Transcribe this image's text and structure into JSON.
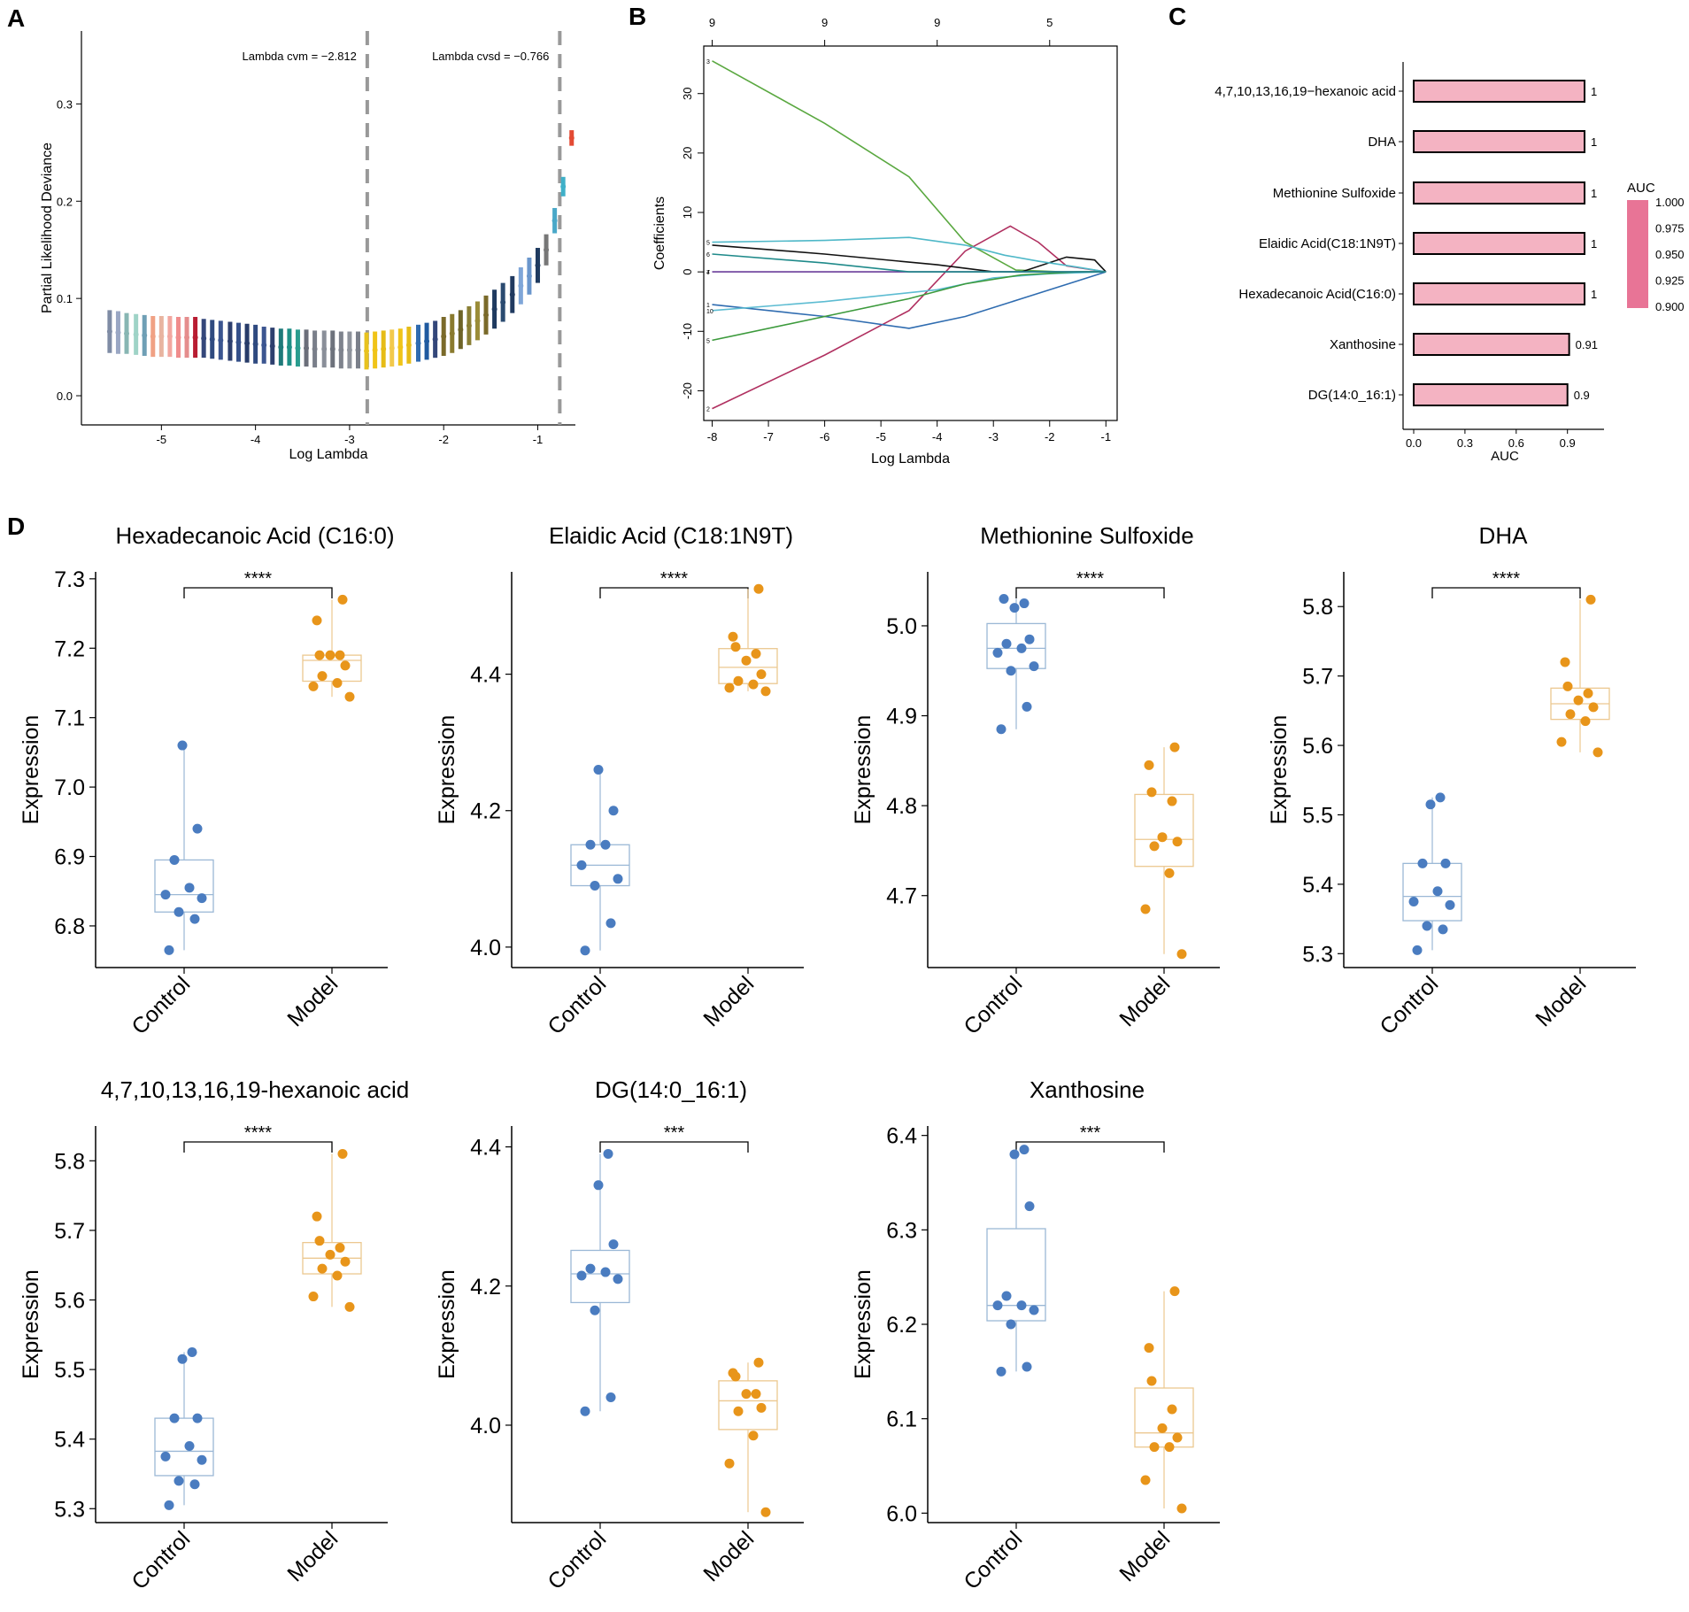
{
  "panel_labels": [
    "A",
    "B",
    "C",
    "D"
  ],
  "chart_data": [
    {
      "id": "A",
      "type": "errorbar",
      "title": "",
      "xlabel": "Log Lambda",
      "ylabel": "Partial Likelihood Deviance",
      "xlim": [
        -5.85,
        -0.6
      ],
      "ylim": [
        -0.03,
        0.375
      ],
      "xticks": [
        -5,
        -4,
        -3,
        -2,
        -1
      ],
      "yticks": [
        0.0,
        0.1,
        0.2,
        0.3
      ],
      "vlines": [
        {
          "x": -2.812,
          "label": "Lambda cvm = −2.812"
        },
        {
          "x": -0.766,
          "label": "Lambda cvsd = −0.766"
        }
      ],
      "points": [
        {
          "x": -5.55,
          "y": 0.066,
          "e": 0.022,
          "c": "#7f8ca5"
        },
        {
          "x": -5.46,
          "y": 0.065,
          "e": 0.022,
          "c": "#9aa7c4"
        },
        {
          "x": -5.37,
          "y": 0.064,
          "e": 0.021,
          "c": "#88b6b3"
        },
        {
          "x": -5.27,
          "y": 0.063,
          "e": 0.021,
          "c": "#9fd3c7"
        },
        {
          "x": -5.18,
          "y": 0.062,
          "e": 0.021,
          "c": "#6f9fb5"
        },
        {
          "x": -5.09,
          "y": 0.061,
          "e": 0.021,
          "c": "#f0a184"
        },
        {
          "x": -5.0,
          "y": 0.061,
          "e": 0.021,
          "c": "#e8b4a0"
        },
        {
          "x": -4.91,
          "y": 0.061,
          "e": 0.021,
          "c": "#f2a7a0"
        },
        {
          "x": -4.82,
          "y": 0.06,
          "e": 0.021,
          "c": "#f08c8c"
        },
        {
          "x": -4.73,
          "y": 0.06,
          "e": 0.021,
          "c": "#e58d8d"
        },
        {
          "x": -4.64,
          "y": 0.06,
          "e": 0.021,
          "c": "#b81d32"
        },
        {
          "x": -4.55,
          "y": 0.059,
          "e": 0.02,
          "c": "#34477a"
        },
        {
          "x": -4.46,
          "y": 0.058,
          "e": 0.02,
          "c": "#2f4a80"
        },
        {
          "x": -4.37,
          "y": 0.057,
          "e": 0.02,
          "c": "#3b5590"
        },
        {
          "x": -4.27,
          "y": 0.056,
          "e": 0.02,
          "c": "#2d3f6e"
        },
        {
          "x": -4.18,
          "y": 0.055,
          "e": 0.02,
          "c": "#35508a"
        },
        {
          "x": -4.09,
          "y": 0.054,
          "e": 0.02,
          "c": "#283c69"
        },
        {
          "x": -4.0,
          "y": 0.053,
          "e": 0.02,
          "c": "#2f4a80"
        },
        {
          "x": -3.91,
          "y": 0.052,
          "e": 0.019,
          "c": "#3b5590"
        },
        {
          "x": -3.82,
          "y": 0.051,
          "e": 0.019,
          "c": "#2d3f6e"
        },
        {
          "x": -3.73,
          "y": 0.05,
          "e": 0.019,
          "c": "#1f7a7a"
        },
        {
          "x": -3.64,
          "y": 0.05,
          "e": 0.019,
          "c": "#1e8f86"
        },
        {
          "x": -3.55,
          "y": 0.049,
          "e": 0.019,
          "c": "#2a9d8f"
        },
        {
          "x": -3.46,
          "y": 0.049,
          "e": 0.019,
          "c": "#6b6f7a"
        },
        {
          "x": -3.37,
          "y": 0.048,
          "e": 0.019,
          "c": "#7a7f8a"
        },
        {
          "x": -3.27,
          "y": 0.048,
          "e": 0.019,
          "c": "#8a8f99"
        },
        {
          "x": -3.18,
          "y": 0.048,
          "e": 0.019,
          "c": "#6d727c"
        },
        {
          "x": -3.09,
          "y": 0.047,
          "e": 0.019,
          "c": "#7e838d"
        },
        {
          "x": -3.0,
          "y": 0.047,
          "e": 0.019,
          "c": "#8e939c"
        },
        {
          "x": -2.91,
          "y": 0.047,
          "e": 0.019,
          "c": "#7a7f8a"
        },
        {
          "x": -2.82,
          "y": 0.046,
          "e": 0.019,
          "c": "#e8c21e"
        },
        {
          "x": -2.73,
          "y": 0.047,
          "e": 0.019,
          "c": "#f0c419"
        },
        {
          "x": -2.64,
          "y": 0.048,
          "e": 0.019,
          "c": "#e6bc16"
        },
        {
          "x": -2.55,
          "y": 0.049,
          "e": 0.019,
          "c": "#f2c94c"
        },
        {
          "x": -2.46,
          "y": 0.05,
          "e": 0.019,
          "c": "#f0c419"
        },
        {
          "x": -2.37,
          "y": 0.052,
          "e": 0.019,
          "c": "#e6bc16"
        },
        {
          "x": -2.27,
          "y": 0.054,
          "e": 0.019,
          "c": "#2f6bb0"
        },
        {
          "x": -2.18,
          "y": 0.056,
          "e": 0.019,
          "c": "#1f5aa0"
        },
        {
          "x": -2.09,
          "y": 0.058,
          "e": 0.019,
          "c": "#34477a"
        },
        {
          "x": -2.0,
          "y": 0.061,
          "e": 0.02,
          "c": "#7a6a2a"
        },
        {
          "x": -1.91,
          "y": 0.064,
          "e": 0.02,
          "c": "#8a7a2e"
        },
        {
          "x": -1.82,
          "y": 0.068,
          "e": 0.02,
          "c": "#6e6428"
        },
        {
          "x": -1.73,
          "y": 0.072,
          "e": 0.02,
          "c": "#8a7f35"
        },
        {
          "x": -1.64,
          "y": 0.077,
          "e": 0.02,
          "c": "#9a8c38"
        },
        {
          "x": -1.55,
          "y": 0.083,
          "e": 0.02,
          "c": "#7a6a2a"
        },
        {
          "x": -1.46,
          "y": 0.089,
          "e": 0.02,
          "c": "#1f3a5f"
        },
        {
          "x": -1.37,
          "y": 0.096,
          "e": 0.02,
          "c": "#2a4a70"
        },
        {
          "x": -1.27,
          "y": 0.104,
          "e": 0.019,
          "c": "#203a60"
        },
        {
          "x": -1.18,
          "y": 0.113,
          "e": 0.019,
          "c": "#7fa6d8"
        },
        {
          "x": -1.09,
          "y": 0.123,
          "e": 0.019,
          "c": "#6a96cc"
        },
        {
          "x": -1.0,
          "y": 0.134,
          "e": 0.018,
          "c": "#1f3a5f"
        },
        {
          "x": -0.91,
          "y": 0.15,
          "e": 0.016,
          "c": "#777777"
        },
        {
          "x": -0.82,
          "y": 0.18,
          "e": 0.013,
          "c": "#4aa8c8"
        },
        {
          "x": -0.73,
          "y": 0.215,
          "e": 0.01,
          "c": "#3fb0c8"
        },
        {
          "x": -0.64,
          "y": 0.265,
          "e": 0.008,
          "c": "#e34a33"
        }
      ]
    },
    {
      "id": "B",
      "type": "line",
      "title": "",
      "xlabel": "Log Lambda",
      "ylabel": "Coefficients",
      "xlim": [
        -8.15,
        -0.8
      ],
      "ylim": [
        -25,
        38
      ],
      "xticks": [
        -8,
        -7,
        -6,
        -5,
        -4,
        -3,
        -2,
        -1
      ],
      "yticks": [
        -20,
        -10,
        0,
        10,
        20,
        30
      ],
      "top_axis": [
        {
          "x": -8,
          "label": "9"
        },
        {
          "x": -6,
          "label": "9"
        },
        {
          "x": -4,
          "label": "9"
        },
        {
          "x": -2,
          "label": "5"
        }
      ],
      "line_labels": [
        "3",
        "5",
        "6",
        "7",
        "4",
        "1",
        "10",
        "5",
        "2"
      ],
      "series": [
        {
          "name": "3",
          "color": "#5aa840",
          "x": [
            -8,
            -6,
            -4.5,
            -3.5,
            -2.6,
            -1.8,
            -1.3,
            -1
          ],
          "y": [
            35.5,
            25,
            16,
            5,
            0.3,
            0,
            0,
            0
          ]
        },
        {
          "name": "2",
          "color": "#b03060",
          "x": [
            -8,
            -6,
            -4.5,
            -3.5,
            -2.7,
            -2.2,
            -1.7,
            -1
          ],
          "y": [
            -23,
            -14,
            -6.5,
            3.5,
            7.7,
            5,
            1,
            0
          ]
        },
        {
          "name": "black",
          "color": "#111111",
          "x": [
            -8,
            -6,
            -4,
            -3,
            -2.5,
            -1.7,
            -1.2,
            -1
          ],
          "y": [
            4.5,
            3,
            1.2,
            0,
            0,
            2.5,
            2,
            0
          ]
        },
        {
          "name": "cyan",
          "color": "#4fb8c8",
          "x": [
            -8,
            -6,
            -4.5,
            -3.5,
            -2.8,
            -2.2,
            -1.5,
            -1
          ],
          "y": [
            5,
            5.3,
            5.8,
            4.5,
            2.8,
            1.8,
            0.8,
            0
          ]
        },
        {
          "name": "blue",
          "color": "#2f6cb0",
          "x": [
            -8,
            -6,
            -4.5,
            -3.5,
            -2.5,
            -1.5,
            -1
          ],
          "y": [
            -5.5,
            -7.5,
            -9.5,
            -7.5,
            -4.5,
            -1.5,
            0
          ]
        },
        {
          "name": "skyblue",
          "color": "#5dbcd2",
          "x": [
            -8,
            -6,
            -4,
            -3,
            -2,
            -1
          ],
          "y": [
            -6.5,
            -5,
            -3,
            -1,
            -0.3,
            0
          ]
        },
        {
          "name": "green2",
          "color": "#3c9a3c",
          "x": [
            -8,
            -6,
            -4.5,
            -3.5,
            -2.5,
            -1.5,
            -1
          ],
          "y": [
            -11.5,
            -7.5,
            -4.5,
            -2,
            -0.5,
            0,
            0
          ]
        },
        {
          "name": "purple",
          "color": "#6a3d9a",
          "x": [
            -8,
            -4.5,
            -1
          ],
          "y": [
            0,
            0,
            0
          ]
        },
        {
          "name": "teal",
          "color": "#1f8a8a",
          "x": [
            -8,
            -6,
            -4.5,
            -3,
            -2,
            -1
          ],
          "y": [
            3,
            1.5,
            0,
            0,
            0,
            0
          ]
        }
      ]
    },
    {
      "id": "C",
      "type": "bar",
      "orientation": "horizontal",
      "xlabel": "AUC",
      "xlim": [
        0,
        1
      ],
      "xticks": [
        "0.0",
        "0.3",
        "0.6",
        "0.9"
      ],
      "categories": [
        "4,7,10,13,16,19−hexanoic acid",
        "DHA",
        "Methionine Sulfoxide",
        "Elaidic Acid(C18:1N9T)",
        "Hexadecanoic Acid(C16:0)",
        "Xanthosine",
        "DG(14:0_16:1)"
      ],
      "values": [
        1,
        1,
        1,
        1,
        1,
        0.91,
        0.9
      ],
      "value_labels": [
        "1",
        "1",
        "1",
        "1",
        "1",
        "0.91",
        "0.9"
      ],
      "bar_color": "#f4b3c2",
      "legend": {
        "title": "AUC",
        "labels": [
          "1.000",
          "0.975",
          "0.950",
          "0.925",
          "0.900"
        ],
        "color": "#e87496"
      }
    },
    {
      "id": "D1",
      "type": "boxplot",
      "title": "Hexadecanoic Acid (C16:0)",
      "ylabel": "Expression",
      "categories": [
        "Control",
        "Model"
      ],
      "significance": "****",
      "ylim": [
        6.74,
        7.31
      ],
      "yticks": [
        6.8,
        6.9,
        7.0,
        7.1,
        7.2,
        7.3
      ],
      "groups": [
        {
          "name": "Control",
          "color": "#4a7cc0",
          "points": [
            6.765,
            6.81,
            6.82,
            6.84,
            6.845,
            6.855,
            6.895,
            6.94,
            7.06
          ]
        },
        {
          "name": "Model",
          "color": "#e8951a",
          "points": [
            7.13,
            7.145,
            7.15,
            7.16,
            7.175,
            7.19,
            7.19,
            7.19,
            7.24,
            7.27
          ]
        }
      ]
    },
    {
      "id": "D2",
      "type": "boxplot",
      "title": "Elaidic Acid (C18:1N9T)",
      "ylabel": "Expression",
      "categories": [
        "Control",
        "Model"
      ],
      "significance": "****",
      "ylim": [
        3.97,
        4.55
      ],
      "yticks": [
        4.0,
        4.2,
        4.4
      ],
      "groups": [
        {
          "name": "Control",
          "color": "#4a7cc0",
          "points": [
            3.995,
            4.035,
            4.09,
            4.1,
            4.12,
            4.15,
            4.15,
            4.2,
            4.26
          ]
        },
        {
          "name": "Model",
          "color": "#e8951a",
          "points": [
            4.375,
            4.38,
            4.385,
            4.39,
            4.4,
            4.42,
            4.43,
            4.44,
            4.455,
            4.525
          ]
        }
      ]
    },
    {
      "id": "D3",
      "type": "boxplot",
      "title": "Methionine Sulfoxide",
      "ylabel": "Expression",
      "categories": [
        "Control",
        "Model"
      ],
      "significance": "****",
      "ylim": [
        4.62,
        5.06
      ],
      "yticks": [
        4.7,
        4.8,
        4.9,
        5.0
      ],
      "groups": [
        {
          "name": "Control",
          "color": "#4a7cc0",
          "points": [
            4.885,
            4.91,
            4.95,
            4.955,
            4.97,
            4.975,
            4.98,
            4.985,
            5.02,
            5.025,
            5.03
          ]
        },
        {
          "name": "Model",
          "color": "#e8951a",
          "points": [
            4.635,
            4.685,
            4.725,
            4.755,
            4.76,
            4.765,
            4.805,
            4.815,
            4.845,
            4.865
          ]
        }
      ]
    },
    {
      "id": "D4",
      "type": "boxplot",
      "title": "DHA",
      "ylabel": "Expression",
      "categories": [
        "Control",
        "Model"
      ],
      "significance": "****",
      "ylim": [
        5.28,
        5.85
      ],
      "yticks": [
        5.3,
        5.4,
        5.5,
        5.6,
        5.7,
        5.8
      ],
      "groups": [
        {
          "name": "Control",
          "color": "#4a7cc0",
          "points": [
            5.305,
            5.335,
            5.34,
            5.37,
            5.375,
            5.39,
            5.43,
            5.43,
            5.515,
            5.525
          ]
        },
        {
          "name": "Model",
          "color": "#e8951a",
          "points": [
            5.59,
            5.605,
            5.635,
            5.645,
            5.655,
            5.665,
            5.675,
            5.685,
            5.72,
            5.81
          ]
        }
      ]
    },
    {
      "id": "D5",
      "type": "boxplot",
      "title": "4,7,10,13,16,19-hexanoic acid",
      "ylabel": "Expression",
      "categories": [
        "Control",
        "Model"
      ],
      "significance": "****",
      "ylim": [
        5.28,
        5.85
      ],
      "yticks": [
        5.3,
        5.4,
        5.5,
        5.6,
        5.7,
        5.8
      ],
      "groups": [
        {
          "name": "Control",
          "color": "#4a7cc0",
          "points": [
            5.305,
            5.335,
            5.34,
            5.37,
            5.375,
            5.39,
            5.43,
            5.43,
            5.515,
            5.525
          ]
        },
        {
          "name": "Model",
          "color": "#e8951a",
          "points": [
            5.59,
            5.605,
            5.635,
            5.645,
            5.655,
            5.665,
            5.675,
            5.685,
            5.72,
            5.81
          ]
        }
      ]
    },
    {
      "id": "D6",
      "type": "boxplot",
      "title": "DG(14:0_16:1)",
      "ylabel": "Expression",
      "categories": [
        "Control",
        "Model"
      ],
      "significance": "***",
      "ylim": [
        3.86,
        4.43
      ],
      "yticks": [
        4.0,
        4.2,
        4.4
      ],
      "groups": [
        {
          "name": "Control",
          "color": "#4a7cc0",
          "points": [
            4.02,
            4.04,
            4.165,
            4.21,
            4.215,
            4.22,
            4.225,
            4.26,
            4.345,
            4.39
          ]
        },
        {
          "name": "Model",
          "color": "#e8951a",
          "points": [
            3.875,
            3.945,
            3.985,
            4.02,
            4.025,
            4.045,
            4.045,
            4.07,
            4.075,
            4.09
          ]
        }
      ]
    },
    {
      "id": "D7",
      "type": "boxplot",
      "title": "Xanthosine",
      "ylabel": "Expression",
      "categories": [
        "Control",
        "Model"
      ],
      "significance": "***",
      "ylim": [
        5.99,
        6.41
      ],
      "yticks": [
        6.0,
        6.1,
        6.2,
        6.3,
        6.4
      ],
      "groups": [
        {
          "name": "Control",
          "color": "#4a7cc0",
          "points": [
            6.15,
            6.155,
            6.2,
            6.215,
            6.22,
            6.22,
            6.23,
            6.325,
            6.38,
            6.385
          ]
        },
        {
          "name": "Model",
          "color": "#e8951a",
          "points": [
            6.005,
            6.035,
            6.07,
            6.07,
            6.08,
            6.09,
            6.11,
            6.14,
            6.175,
            6.235
          ]
        }
      ]
    }
  ]
}
